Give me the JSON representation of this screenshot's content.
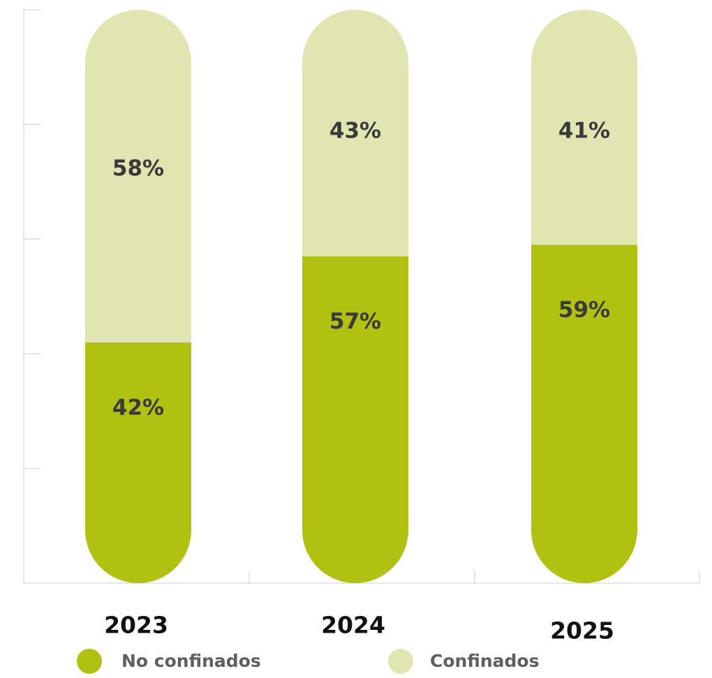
{
  "chart_data": {
    "type": "bar",
    "stacked": true,
    "normalized": true,
    "categories": [
      "2023",
      "2024",
      "2025"
    ],
    "series": [
      {
        "name": "No confinados",
        "values": [
          42,
          57,
          59
        ],
        "labels": [
          "42%",
          "57%",
          "59%"
        ],
        "color": "#b0c112"
      },
      {
        "name": "Confinados",
        "values": [
          58,
          43,
          41
        ],
        "labels": [
          "58%",
          "43%",
          "41%"
        ],
        "color": "#e1e5b1"
      }
    ],
    "ylim": [
      0,
      100
    ],
    "grid": false,
    "legend": "bottom",
    "bar_shape": "capsule",
    "title": "",
    "xlabel": "",
    "ylabel": ""
  }
}
